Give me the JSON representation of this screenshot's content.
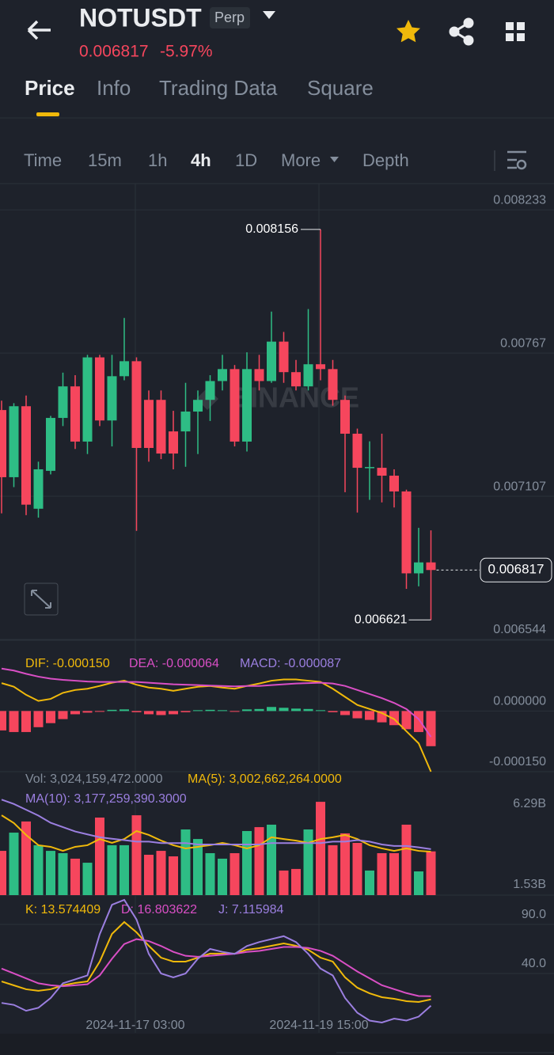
{
  "header": {
    "symbol": "NOTUSDT",
    "badge": "Perp",
    "price": "0.006817",
    "change": "-5.97%"
  },
  "tabs": [
    "Price",
    "Info",
    "Trading Data",
    "Square"
  ],
  "intervals": [
    "Time",
    "15m",
    "1h",
    "4h",
    "1D",
    "More",
    "Depth"
  ],
  "watermark": "BINANCE",
  "x_labels": [
    "2024-11-17 03:00",
    "2024-11-19 15:00"
  ],
  "chart_data": [
    {
      "type": "candlestick",
      "colors": {
        "up": "#2ebd85",
        "down": "#f6465d"
      },
      "open": [
        0.007446,
        0.007182,
        0.007461,
        0.007058,
        0.007207,
        0.007415,
        0.007539,
        0.007322,
        0.007653,
        0.007405,
        0.007579,
        0.007638,
        0.007486,
        0.007486,
        0.007362,
        0.007362,
        0.00744,
        0.007486,
        0.00756,
        0.007607,
        0.007322,
        0.007607,
        0.00756,
        0.007715,
        0.007595,
        0.007539,
        0.007626,
        0.007607,
        0.007486,
        0.007353,
        0.007219,
        0.007219,
        0.007188,
        0.007126,
        0.006804,
        0.006847
      ],
      "high": [
        0.007483,
        0.007473,
        0.007503,
        0.007243,
        0.007423,
        0.007593,
        0.007583,
        0.007663,
        0.007663,
        0.007663,
        0.007808,
        0.007653,
        0.007523,
        0.007523,
        0.007443,
        0.007553,
        0.007523,
        0.007583,
        0.007663,
        0.007623,
        0.007673,
        0.007663,
        0.007833,
        0.007753,
        0.007643,
        0.007843,
        0.008156,
        0.007643,
        0.007503,
        0.007373,
        0.007323,
        0.007353,
        0.007213,
        0.007133,
        0.006983,
        0.006973
      ],
      "low": [
        0.00704,
        0.007143,
        0.007033,
        0.007023,
        0.007193,
        0.007383,
        0.007293,
        0.007273,
        0.007383,
        0.007303,
        0.007563,
        0.006971,
        0.007243,
        0.007253,
        0.007213,
        0.007223,
        0.007273,
        0.007403,
        0.007523,
        0.007303,
        0.007283,
        0.007523,
        0.007553,
        0.007553,
        0.007523,
        0.007523,
        0.007563,
        0.007463,
        0.007123,
        0.007043,
        0.007093,
        0.007083,
        0.007063,
        0.006743,
        0.006753,
        0.006621
      ],
      "close": [
        0.007182,
        0.007461,
        0.007074,
        0.007213,
        0.007415,
        0.007539,
        0.007322,
        0.007653,
        0.007405,
        0.007579,
        0.007638,
        0.007297,
        0.007297,
        0.007275,
        0.007275,
        0.00744,
        0.007486,
        0.00756,
        0.007607,
        0.007322,
        0.007607,
        0.00756,
        0.007715,
        0.007595,
        0.007539,
        0.007626,
        0.007607,
        0.007486,
        0.007353,
        0.007219,
        0.007222,
        0.007188,
        0.007126,
        0.006804,
        0.006847,
        0.006817
      ],
      "ylim": [
        0.006544,
        0.008333
      ],
      "yticks": [
        0.008233,
        0.00767,
        0.007107,
        0.006544
      ]
    },
    {
      "type": "macd",
      "legend": [
        "DIF: -0.000150",
        "DEA: -0.000064",
        "MACD: -0.000087"
      ],
      "histogram": [
        -4.8e-05,
        -5.2e-05,
        -5.2e-05,
        -4e-05,
        -3e-05,
        -2e-05,
        -8e-06,
        -4e-06,
        -2e-06,
        3e-06,
        4e-06,
        -3e-06,
        -8e-06,
        -1e-05,
        -8e-06,
        -3e-06,
        2e-06,
        3e-06,
        2e-06,
        -2e-06,
        4e-06,
        5e-06,
        1e-05,
        8e-06,
        6e-06,
        5e-06,
        2e-06,
        -3e-06,
        -1e-05,
        -1.8e-05,
        -2.2e-05,
        -2.8e-05,
        -3.5e-05,
        -4.5e-05,
        -5.2e-05,
        -8.7e-05
      ],
      "series": [
        {
          "name": "DIF",
          "color": "#f0b90b",
          "values": [
            6.9e-05,
            6e-05,
            4e-05,
            2.5e-05,
            3e-05,
            4.5e-05,
            5.2e-05,
            5.5e-05,
            6.2e-05,
            7e-05,
            7.5e-05,
            6.5e-05,
            5.8e-05,
            5.5e-05,
            5e-05,
            5.5e-05,
            6e-05,
            6.2e-05,
            5.8e-05,
            5.5e-05,
            6.2e-05,
            6.8e-05,
            7.5e-05,
            7.8e-05,
            7.8e-05,
            7.5e-05,
            7.2e-05,
            5.5e-05,
            3.5e-05,
            1.5e-05,
            5e-06,
            -5e-06,
            -2e-05,
            -5e-05,
            -8e-05,
            -0.00015
          ]
        },
        {
          "name": "DEA",
          "color": "#d94fc5",
          "values": [
            0.000105,
            0.0001,
            9.2e-05,
            8.5e-05,
            8e-05,
            7.7e-05,
            7.5e-05,
            7.3e-05,
            7.2e-05,
            7.2e-05,
            7.2e-05,
            7.2e-05,
            7e-05,
            6.8e-05,
            6.6e-05,
            6.5e-05,
            6.4e-05,
            6.3e-05,
            6.2e-05,
            6.1e-05,
            6.2e-05,
            6.2e-05,
            6.4e-05,
            6.6e-05,
            6.8e-05,
            6.9e-05,
            7e-05,
            6.8e-05,
            6.2e-05,
            5.2e-05,
            4.2e-05,
            3.2e-05,
            2e-05,
            5e-06,
            -2e-05,
            -6.4e-05
          ]
        }
      ],
      "ylim": [
        -0.00015,
        0.000173
      ],
      "yticks": [
        {
          "value": 0,
          "label": "0.000000"
        },
        {
          "value": -0.00015,
          "label": "-0.000150"
        }
      ]
    },
    {
      "type": "bar",
      "legend": [
        "Vol: 3,024,159,472.0000",
        "MA(5): 3,002,662,264.0000",
        "MA(10): 3,177,259,390.3000"
      ],
      "axis_labels": [
        "6.29B",
        "1.53B"
      ],
      "values": [
        3.06,
        4.32,
        5.09,
        3.45,
        3.06,
        2.9,
        2.52,
        2.24,
        5.36,
        3.45,
        3.45,
        5.52,
        2.79,
        3.06,
        2.68,
        4.54,
        3.88,
        2.9,
        2.52,
        2.9,
        4.43,
        4.7,
        4.87,
        1.7,
        1.81,
        4.54,
        6.45,
        3.45,
        4.27,
        3.61,
        1.7,
        2.9,
        2.9,
        4.87,
        1.64,
        3.024159472
      ],
      "series": [
        {
          "name": "MA(5)",
          "color": "#f0b90b",
          "values": [
            5.52,
            4.98,
            4.16,
            3.45,
            3.34,
            3.06,
            3.34,
            3.45,
            3.88,
            3.61,
            3.88,
            4.43,
            4.16,
            3.77,
            3.45,
            3.23,
            3.34,
            3.45,
            3.61,
            3.45,
            3.23,
            3.45,
            4.0,
            3.88,
            3.77,
            3.61,
            3.88,
            4.0,
            4.16,
            3.88,
            3.45,
            3.23,
            3.06,
            3.23,
            3.06,
            3.002662264
          ]
        },
        {
          "name": "MA(10)",
          "color": "#9b7fe0",
          "values": [
            6.6,
            6.3,
            5.9,
            5.5,
            5.0,
            4.7,
            4.4,
            4.2,
            4.0,
            3.9,
            3.8,
            3.7,
            3.7,
            3.6,
            3.6,
            3.6,
            3.5,
            3.5,
            3.5,
            3.5,
            3.5,
            3.5,
            3.6,
            3.6,
            3.6,
            3.6,
            3.6,
            3.7,
            3.7,
            3.8,
            3.7,
            3.5,
            3.4,
            3.4,
            3.3,
            3.1772593903
          ]
        }
      ],
      "ylim": [
        0,
        8.37
      ]
    },
    {
      "type": "line",
      "legend": [
        "K: 13.574409",
        "D: 16.803622",
        "J: 7.115984"
      ],
      "series": [
        {
          "name": "K",
          "color": "#f0b90b",
          "values": [
            31.9,
            27.9,
            23.9,
            22.3,
            23.9,
            27.9,
            30.3,
            31.9,
            52.1,
            80.3,
            92.4,
            81.9,
            68.2,
            56.1,
            52.1,
            52.1,
            56.1,
            60.2,
            60.2,
            60.2,
            64.2,
            65.8,
            68.2,
            70.6,
            68.2,
            64.2,
            56.1,
            52.1,
            36.0,
            25.5,
            19.8,
            15.8,
            14.2,
            11.8,
            11.0,
            13.574409
          ]
        },
        {
          "name": "D",
          "color": "#d94fc5",
          "values": [
            45,
            40,
            35,
            30,
            28,
            27,
            28,
            29,
            38,
            55,
            70,
            75,
            73,
            68,
            62,
            58,
            57,
            58,
            59,
            60,
            62,
            63,
            65,
            67,
            67,
            66,
            63,
            58,
            50,
            42,
            35,
            28,
            24,
            20,
            17,
            16.803622
          ]
        },
        {
          "name": "J",
          "color": "#9b7fe0",
          "values": [
            10,
            8,
            2,
            5,
            15,
            30,
            34,
            38,
            80,
            110,
            115,
            95,
            60,
            40,
            36,
            40,
            55,
            65,
            62,
            60,
            68,
            72,
            75,
            78,
            72,
            60,
            45,
            38,
            15,
            0,
            -8,
            -10,
            -6,
            -8,
            -4,
            7.115984
          ]
        }
      ],
      "ylim": [
        -20.5,
        116.6
      ],
      "yticks": [
        {
          "value": 90,
          "label": "90.0"
        },
        {
          "value": 40,
          "label": "40.0"
        }
      ]
    }
  ]
}
